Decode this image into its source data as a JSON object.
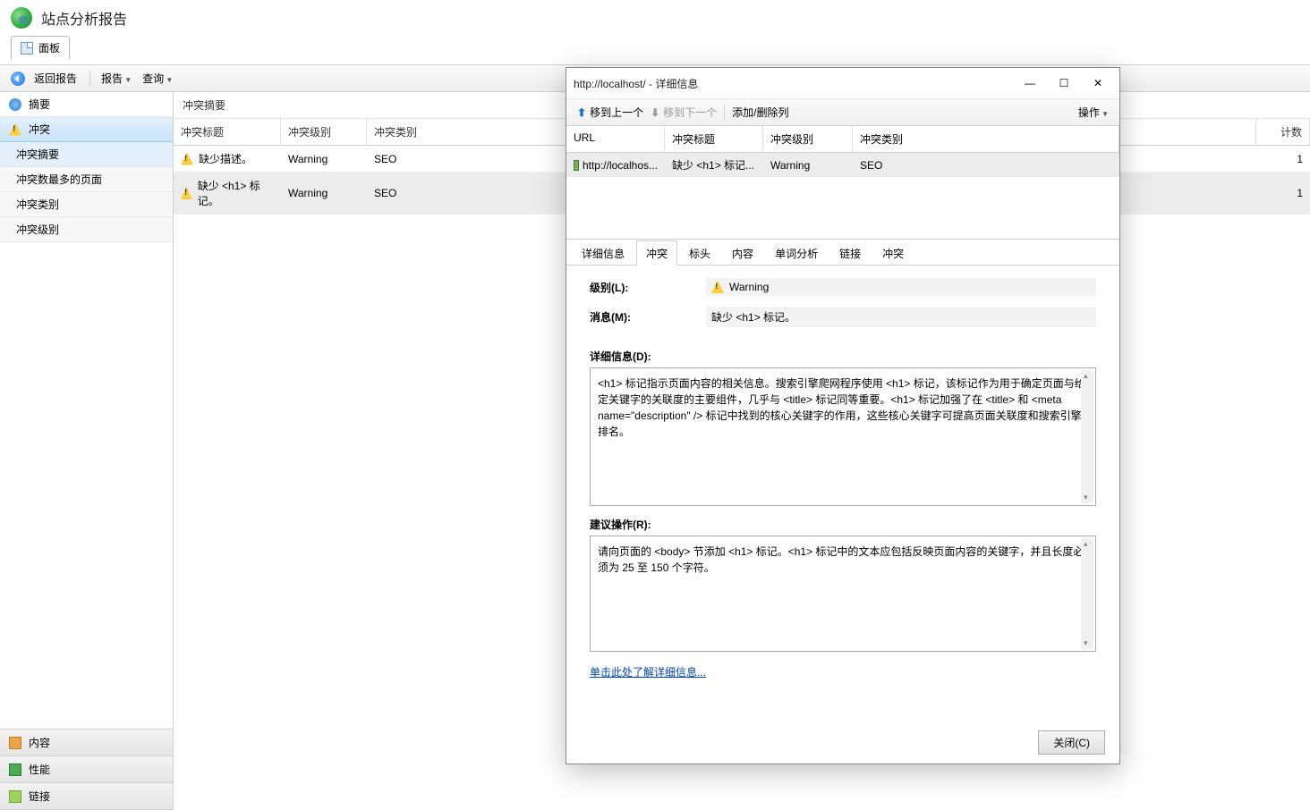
{
  "header": {
    "title": "站点分析报告"
  },
  "tab": {
    "label": "面板"
  },
  "toolbar": {
    "back": "返回报告",
    "report": "报告",
    "query": "查询"
  },
  "sidebar": {
    "items": [
      {
        "label": "摘要",
        "icon": "summary"
      },
      {
        "label": "冲突",
        "icon": "warn",
        "selected": true
      },
      {
        "label": "冲突摘要",
        "sub": true,
        "active": true
      },
      {
        "label": "冲突数最多的页面",
        "sub": true
      },
      {
        "label": "冲突类别",
        "sub": true
      },
      {
        "label": "冲突级别",
        "sub": true
      }
    ],
    "bottom": [
      {
        "label": "内容",
        "cls": "orange"
      },
      {
        "label": "性能",
        "cls": "green"
      },
      {
        "label": "链接",
        "cls": "link"
      }
    ]
  },
  "content": {
    "panel_title": "冲突摘要",
    "columns": {
      "c1": "冲突标题",
      "c2": "冲突级别",
      "c3": "冲突类别",
      "c4": "计数"
    },
    "rows": [
      {
        "title": "缺少描述。",
        "level": "Warning",
        "cat": "SEO",
        "count": "1"
      },
      {
        "title": "缺少 <h1> 标记。",
        "level": "Warning",
        "cat": "SEO",
        "count": "1",
        "sel": true
      }
    ]
  },
  "dialog": {
    "title": "http://localhost/ - 详细信息",
    "tool": {
      "prev": "移到上一个",
      "next": "移到下一个",
      "addcol": "添加/删除列",
      "ops": "操作"
    },
    "grid": {
      "cols": {
        "d1": "URL",
        "d2": "冲突标题",
        "d3": "冲突级别",
        "d4": "冲突类别"
      },
      "row": {
        "url": "http://localhos...",
        "title": "缺少 <h1> 标记...",
        "level": "Warning",
        "cat": "SEO"
      }
    },
    "tabs": [
      "详细信息",
      "冲突",
      "标头",
      "内容",
      "单词分析",
      "链接",
      "冲突"
    ],
    "active_tab": 1,
    "form": {
      "level_label": "级别(L):",
      "level_value": "Warning",
      "msg_label": "消息(M):",
      "msg_value": "缺少 <h1> 标记。"
    },
    "detail_label": "详细信息(D):",
    "detail_text": "<h1> 标记指示页面内容的相关信息。搜索引擎爬网程序使用 <h1> 标记，该标记作为用于确定页面与给定关键字的关联度的主要组件，几乎与 <title> 标记同等重要。<h1> 标记加强了在 <title> 和 <meta name=\"description\" /> 标记中找到的核心关键字的作用，这些核心关键字可提高页面关联度和搜索引擎排名。",
    "rec_label": "建议操作(R):",
    "rec_text": "请向页面的 <body> 节添加 <h1> 标记。<h1> 标记中的文本应包括反映页面内容的关键字，并且长度必须为 25 至 150 个字符。",
    "more_link": "单击此处了解详细信息...",
    "close_btn": "关闭(C)"
  }
}
